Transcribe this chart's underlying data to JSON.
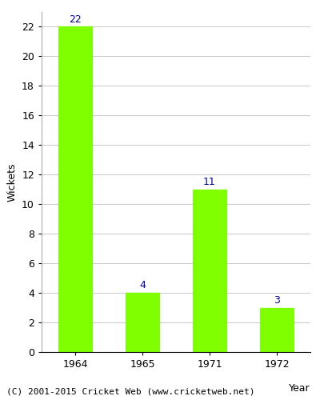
{
  "categories": [
    "1964",
    "1965",
    "1971",
    "1972"
  ],
  "values": [
    22,
    4,
    11,
    3
  ],
  "bar_color": "#7fff00",
  "bar_edge_color": "#7fff00",
  "ylabel": "Wickets",
  "xlabel": "Year",
  "ylim": [
    0,
    23
  ],
  "yticks": [
    0,
    2,
    4,
    6,
    8,
    10,
    12,
    14,
    16,
    18,
    20,
    22
  ],
  "label_color": "#00008b",
  "label_fontsize": 9,
  "axis_label_fontsize": 9,
  "tick_fontsize": 9,
  "footer_text": "(C) 2001-2015 Cricket Web (www.cricketweb.net)",
  "footer_fontsize": 8,
  "grid_color": "#cccccc"
}
